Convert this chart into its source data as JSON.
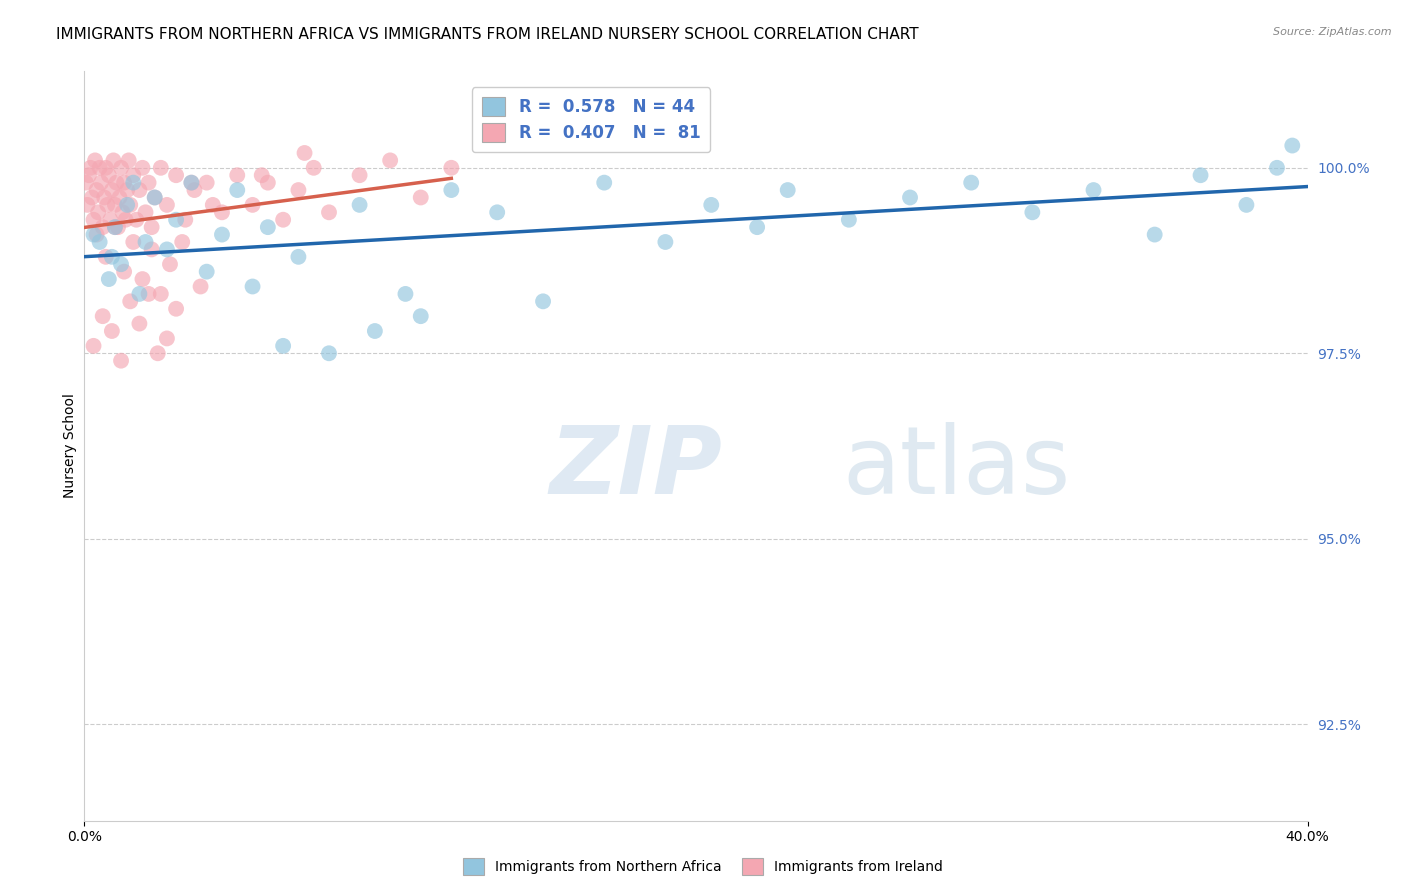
{
  "title": "IMMIGRANTS FROM NORTHERN AFRICA VS IMMIGRANTS FROM IRELAND NURSERY SCHOOL CORRELATION CHART",
  "source": "Source: ZipAtlas.com",
  "ylabel": "Nursery School",
  "ytick_values": [
    92.5,
    95.0,
    97.5,
    100.0
  ],
  "xlim": [
    0.0,
    40.0
  ],
  "ylim": [
    91.2,
    101.3
  ],
  "legend_blue_r": "0.578",
  "legend_blue_n": "44",
  "legend_pink_r": "0.407",
  "legend_pink_n": "81",
  "legend_label_blue": "Immigrants from Northern Africa",
  "legend_label_pink": "Immigrants from Ireland",
  "blue_color": "#92c5de",
  "pink_color": "#f4a7b2",
  "trendline_blue": "#2166ac",
  "trendline_pink": "#d6604d",
  "tick_color": "#4472c4",
  "grid_color": "#cccccc",
  "title_fontsize": 11,
  "axis_label_fontsize": 10,
  "tick_fontsize": 10,
  "legend_fontsize": 12,
  "watermark_zip": "ZIP",
  "watermark_atlas": "atlas",
  "watermark_color_zip": "#c5d8ea",
  "watermark_color_atlas": "#b8cfe0",
  "blue_x": [
    0.3,
    0.5,
    0.8,
    0.9,
    1.0,
    1.2,
    1.4,
    1.6,
    1.8,
    2.0,
    2.3,
    2.7,
    3.0,
    3.5,
    4.0,
    4.5,
    5.0,
    5.5,
    6.0,
    6.5,
    7.0,
    8.0,
    9.0,
    9.5,
    10.5,
    11.0,
    12.0,
    13.5,
    15.0,
    17.0,
    19.0,
    20.5,
    22.0,
    23.0,
    25.0,
    27.0,
    29.0,
    31.0,
    33.0,
    35.0,
    36.5,
    38.0,
    39.0,
    39.5
  ],
  "blue_y": [
    99.1,
    99.0,
    98.5,
    98.8,
    99.2,
    98.7,
    99.5,
    99.8,
    98.3,
    99.0,
    99.6,
    98.9,
    99.3,
    99.8,
    98.6,
    99.1,
    99.7,
    98.4,
    99.2,
    97.6,
    98.8,
    97.5,
    99.5,
    97.8,
    98.3,
    98.0,
    99.7,
    99.4,
    98.2,
    99.8,
    99.0,
    99.5,
    99.2,
    99.7,
    99.3,
    99.6,
    99.8,
    99.4,
    99.7,
    99.1,
    99.9,
    99.5,
    100.0,
    100.3
  ],
  "pink_x": [
    0.05,
    0.1,
    0.15,
    0.2,
    0.25,
    0.3,
    0.35,
    0.4,
    0.45,
    0.5,
    0.55,
    0.6,
    0.65,
    0.7,
    0.75,
    0.8,
    0.85,
    0.9,
    0.95,
    1.0,
    1.05,
    1.1,
    1.15,
    1.2,
    1.25,
    1.3,
    1.35,
    1.4,
    1.45,
    1.5,
    1.6,
    1.7,
    1.8,
    1.9,
    2.0,
    2.1,
    2.2,
    2.3,
    2.5,
    2.7,
    3.0,
    3.3,
    3.6,
    4.0,
    4.5,
    5.0,
    5.5,
    6.0,
    6.5,
    7.0,
    7.5,
    8.0,
    9.0,
    10.0,
    11.0,
    12.0,
    3.5,
    4.2,
    5.8,
    7.2,
    0.3,
    0.6,
    0.9,
    1.2,
    1.5,
    1.8,
    2.1,
    2.4,
    2.7,
    3.0,
    0.4,
    0.7,
    1.0,
    1.3,
    1.6,
    1.9,
    2.2,
    2.5,
    2.8,
    3.2,
    3.8
  ],
  "pink_y": [
    99.8,
    99.5,
    99.9,
    100.0,
    99.6,
    99.3,
    100.1,
    99.7,
    99.4,
    100.0,
    99.8,
    99.2,
    99.6,
    100.0,
    99.5,
    99.9,
    99.3,
    99.7,
    100.1,
    99.5,
    99.8,
    99.2,
    99.6,
    100.0,
    99.4,
    99.8,
    99.3,
    99.7,
    100.1,
    99.5,
    99.9,
    99.3,
    99.7,
    100.0,
    99.4,
    99.8,
    99.2,
    99.6,
    100.0,
    99.5,
    99.9,
    99.3,
    99.7,
    99.8,
    99.4,
    99.9,
    99.5,
    99.8,
    99.3,
    99.7,
    100.0,
    99.4,
    99.9,
    100.1,
    99.6,
    100.0,
    99.8,
    99.5,
    99.9,
    100.2,
    97.6,
    98.0,
    97.8,
    97.4,
    98.2,
    97.9,
    98.3,
    97.5,
    97.7,
    98.1,
    99.1,
    98.8,
    99.2,
    98.6,
    99.0,
    98.5,
    98.9,
    98.3,
    98.7,
    99.0,
    98.4
  ]
}
